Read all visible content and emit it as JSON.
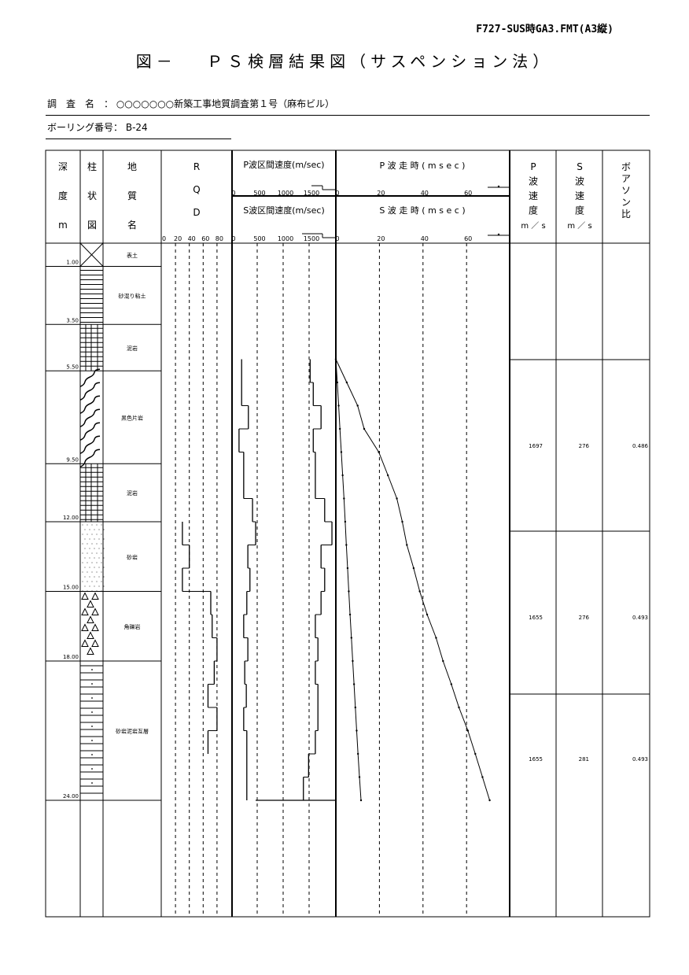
{
  "form_id": "F727-SUS時GA3.FMT(A3縦)",
  "title": "図－　 ＰＳ検層結果図（サスペンション法）",
  "survey": {
    "label": "調　査　名　：",
    "value": "○○○○○○○新築工事地質調査第１号（麻布ビル）"
  },
  "boring": {
    "label": "ボーリング番号：",
    "value": "B-24"
  },
  "headers": {
    "depth": [
      "深",
      "度",
      "m"
    ],
    "column": [
      "柱",
      "状",
      "図"
    ],
    "geology": [
      "地",
      "質",
      "名"
    ],
    "rqd": [
      "R",
      "Q",
      "D"
    ],
    "rqd_ticks": [
      "0",
      "20",
      "40",
      "60",
      "80"
    ],
    "p_velocity": "P波区間速度(m/sec)",
    "s_velocity": "S波区間速度(m/sec)",
    "velocity_ticks": [
      "0",
      "500",
      "1000",
      "1500"
    ],
    "p_time": "P 波 走 時 ( m s e c )",
    "s_time": "S 波 走 時 ( m s e c )",
    "time_ticks": [
      "0",
      "20",
      "40",
      "60"
    ],
    "p_speed": [
      "P",
      "波",
      "速",
      "度",
      "m ／ s"
    ],
    "s_speed": [
      "S",
      "波",
      "速",
      "度",
      "m ／ s"
    ],
    "poisson": [
      "ボ",
      "ア",
      "ソ",
      "ン",
      "比"
    ]
  },
  "layers": [
    {
      "name": "表土",
      "bottom": "1.00",
      "depth": 1.0,
      "pattern": "cross"
    },
    {
      "name": "砂混り粘土",
      "bottom": "3.50",
      "depth": 3.5,
      "pattern": "hlines"
    },
    {
      "name": "泥岩",
      "bottom": "5.50",
      "depth": 5.5,
      "pattern": "grid"
    },
    {
      "name": "黒色片岩",
      "bottom": "9.50",
      "depth": 9.5,
      "pattern": "wavy"
    },
    {
      "name": "泥岩",
      "bottom": "12.00",
      "depth": 12.0,
      "pattern": "grid"
    },
    {
      "name": "砂岩",
      "bottom": "15.00",
      "depth": 15.0,
      "pattern": "dots"
    },
    {
      "name": "角礫岩",
      "bottom": "18.00",
      "depth": 18.0,
      "pattern": "triangles"
    },
    {
      "name": "砂岩泥岩互層",
      "bottom": "24.00",
      "depth": 24.0,
      "pattern": "alternating"
    }
  ],
  "chart_data": [
    {
      "type": "line",
      "title": "RQD",
      "xlim": [
        0,
        100
      ],
      "depth_intervals": [
        [
          12,
          13
        ],
        [
          13,
          14
        ],
        [
          14,
          15
        ],
        [
          15,
          16
        ],
        [
          16,
          17
        ],
        [
          17,
          18
        ],
        [
          18,
          19
        ],
        [
          19,
          20
        ],
        [
          20,
          21
        ],
        [
          21,
          22
        ]
      ],
      "values": [
        30,
        40,
        30,
        71,
        73,
        80,
        76,
        67,
        80,
        67
      ]
    },
    {
      "type": "line",
      "title": "区間速度 (m/sec)",
      "xlim": [
        0,
        2000
      ],
      "depth_start": 5,
      "depth_step": 1,
      "series": [
        {
          "name": "P波区間速度",
          "values": [
            1520,
            1580,
            1730,
            1580,
            1620,
            1620,
            1800,
            1940,
            1730,
            1800,
            1730,
            1620,
            1670,
            1620,
            1670,
            1670,
            1620,
            1490,
            1390
          ]
        },
        {
          "name": "S波区間速度",
          "values": [
            200,
            200,
            330,
            150,
            240,
            240,
            410,
            470,
            320,
            360,
            300,
            240,
            320,
            260,
            290,
            240,
            300,
            300,
            300
          ]
        }
      ]
    },
    {
      "type": "line",
      "title": "走時 (msec)",
      "xlim": [
        0,
        80
      ],
      "depth": [
        5,
        6,
        7,
        8,
        9,
        10,
        11,
        12,
        13,
        14,
        15,
        16,
        17,
        18,
        19,
        20,
        21,
        22,
        23,
        24
      ],
      "series": [
        {
          "name": "P波走時",
          "values": [
            0,
            0.66,
            1.29,
            1.87,
            2.5,
            3.12,
            3.74,
            4.29,
            4.81,
            5.39,
            5.94,
            6.52,
            7.14,
            7.74,
            8.35,
            8.95,
            9.55,
            10.17,
            10.84,
            11.56
          ]
        },
        {
          "name": "S波走時",
          "values": [
            0,
            5.0,
            10.0,
            13.0,
            19.7,
            23.9,
            28.0,
            30.5,
            32.6,
            35.7,
            38.5,
            41.9,
            46.0,
            49.2,
            53.0,
            56.5,
            60.6,
            64.0,
            67.3,
            70.6
          ]
        }
      ]
    }
  ],
  "results": [
    {
      "p": "",
      "s": "",
      "poisson": ""
    },
    {
      "p": "1697",
      "s": "276",
      "poisson": "0.486"
    },
    {
      "p": "1655",
      "s": "276",
      "poisson": "0.493"
    },
    {
      "p": "1655",
      "s": "281",
      "poisson": "0.493"
    }
  ]
}
